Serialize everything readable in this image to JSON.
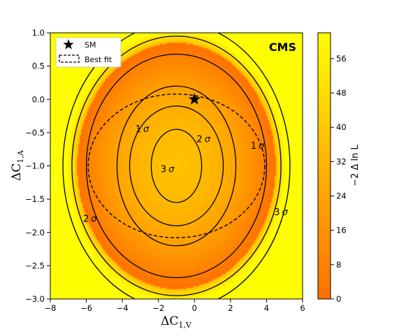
{
  "chart_data": {
    "type": "heatmap",
    "experiment_label": "CMS",
    "xlabel_main": "ΔC",
    "xlabel_sub": "1,V",
    "ylabel_main": "ΔC",
    "ylabel_sub": "1,A",
    "xlim": [
      -8,
      6
    ],
    "ylim": [
      -3.0,
      1.0
    ],
    "x_ticks": [
      -8,
      -6,
      -4,
      -2,
      0,
      2,
      4,
      6
    ],
    "x_tick_labels": [
      "−8",
      "−6",
      "−4",
      "−2",
      "0",
      "2",
      "4",
      "6"
    ],
    "y_ticks": [
      1.0,
      0.5,
      0.0,
      -0.5,
      -1.0,
      -1.5,
      -2.0,
      -2.5,
      -3.0
    ],
    "y_tick_labels": [
      "1.0",
      "0.5",
      "0.0",
      "−0.5",
      "−1.0",
      "−1.5",
      "−2.0",
      "−2.5",
      "−3.0"
    ],
    "colorbar": {
      "label": "−2 Δ ln L",
      "range": [
        0,
        62
      ],
      "ticks": [
        0,
        8,
        16,
        24,
        32,
        40,
        48,
        56
      ],
      "tick_labels": [
        "0",
        "8",
        "16",
        "24",
        "32",
        "40",
        "48",
        "56"
      ],
      "color_low": "#ff7000",
      "color_high": "#ffff00"
    },
    "nll_minimum": 35,
    "center": [
      -1.0,
      -1.0
    ],
    "scale": [
      5.5,
      1.85
    ],
    "best_fit_contour": {
      "x": [
        -1.0,
        2.5
      ],
      "y": [
        -1.0,
        0.0
      ]
    },
    "sm_point": {
      "x": 0.0,
      "y": 0.0
    },
    "legend": [
      {
        "label": "SM",
        "marker": "star"
      },
      {
        "label": "Best fit",
        "marker": "dashed-box"
      }
    ],
    "legend_position": "top-left",
    "contours": [
      {
        "name": "inner",
        "semi_axis_x": 1.4,
        "semi_axis_y": 0.55,
        "labels": [
          {
            "text": "3",
            "sigma": "σ",
            "x": -1.5,
            "y": -1.05
          }
        ]
      },
      {
        "name": "inner-2",
        "semi_axis_x": 2.6,
        "semi_axis_y": 0.9,
        "labels": [
          {
            "text": "2",
            "sigma": "σ",
            "x": 0.5,
            "y": -0.6
          }
        ]
      },
      {
        "name": "inner-1",
        "semi_axis_x": 3.3,
        "semi_axis_y": 1.2,
        "labels": [
          {
            "text": "1",
            "sigma": "σ",
            "x": -2.9,
            "y": -0.45
          }
        ]
      },
      {
        "name": "outer-1",
        "semi_axis_x": 5.0,
        "semi_axis_y": 1.68,
        "labels": [
          {
            "text": "1",
            "sigma": "σ",
            "x": 3.5,
            "y": -0.7
          }
        ]
      },
      {
        "name": "outer-2",
        "semi_axis_x": 5.8,
        "semi_axis_y": 1.95,
        "labels": [
          {
            "text": "2",
            "sigma": "σ",
            "x": -5.8,
            "y": -1.8
          }
        ]
      },
      {
        "name": "outer-3",
        "semi_axis_x": 6.3,
        "semi_axis_y": 2.15,
        "labels": [
          {
            "text": "3",
            "sigma": "σ",
            "x": 4.8,
            "y": -1.7
          }
        ]
      }
    ]
  }
}
